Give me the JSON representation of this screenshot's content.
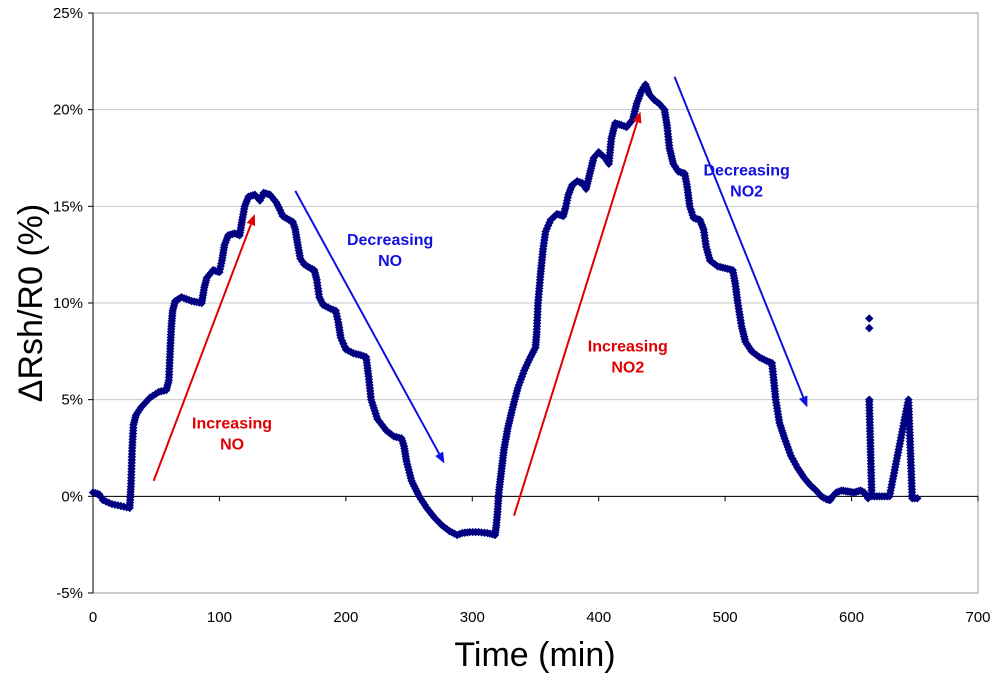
{
  "chart_data": {
    "type": "scatter",
    "title": "",
    "xlabel": "Time (min)",
    "ylabel": "ΔRsh/R0 (%)",
    "xlim": [
      0,
      700
    ],
    "ylim": [
      -5,
      25
    ],
    "xticks": [
      0,
      100,
      200,
      300,
      400,
      500,
      600,
      700
    ],
    "yticks": [
      -5,
      0,
      5,
      10,
      15,
      20,
      25
    ],
    "yticklabels": [
      "-5%",
      "0%",
      "5%",
      "10%",
      "15%",
      "20%",
      "25%"
    ],
    "grid": "horizontal",
    "marker_color": "#000080",
    "series": [
      {
        "name": "ΔRsh/R0",
        "marker": "diamond",
        "points": [
          [
            0,
            0.2
          ],
          [
            5,
            0.1
          ],
          [
            8,
            -0.2
          ],
          [
            15,
            -0.4
          ],
          [
            22,
            -0.5
          ],
          [
            29,
            -0.6
          ],
          [
            30,
            0.5
          ],
          [
            31,
            2.5
          ],
          [
            32,
            3.7
          ],
          [
            34,
            4.2
          ],
          [
            38,
            4.6
          ],
          [
            45,
            5.1
          ],
          [
            52,
            5.4
          ],
          [
            58,
            5.5
          ],
          [
            60,
            6.0
          ],
          [
            61,
            7.5
          ],
          [
            62,
            8.8
          ],
          [
            63,
            9.6
          ],
          [
            65,
            10.1
          ],
          [
            70,
            10.3
          ],
          [
            78,
            10.1
          ],
          [
            86,
            10.0
          ],
          [
            88,
            10.8
          ],
          [
            90,
            11.3
          ],
          [
            95,
            11.7
          ],
          [
            100,
            11.6
          ],
          [
            102,
            12.2
          ],
          [
            104,
            13.0
          ],
          [
            107,
            13.5
          ],
          [
            112,
            13.6
          ],
          [
            116,
            13.5
          ],
          [
            118,
            14.3
          ],
          [
            120,
            15.0
          ],
          [
            123,
            15.5
          ],
          [
            128,
            15.6
          ],
          [
            132,
            15.3
          ],
          [
            135,
            15.7
          ],
          [
            140,
            15.6
          ],
          [
            145,
            15.2
          ],
          [
            148,
            14.8
          ],
          [
            150,
            14.5
          ],
          [
            155,
            14.3
          ],
          [
            158,
            14.2
          ],
          [
            160,
            13.8
          ],
          [
            162,
            13.0
          ],
          [
            164,
            12.3
          ],
          [
            167,
            12.0
          ],
          [
            172,
            11.8
          ],
          [
            175,
            11.7
          ],
          [
            177,
            11.2
          ],
          [
            179,
            10.3
          ],
          [
            182,
            9.9
          ],
          [
            188,
            9.7
          ],
          [
            192,
            9.6
          ],
          [
            194,
            9.0
          ],
          [
            196,
            8.2
          ],
          [
            200,
            7.6
          ],
          [
            206,
            7.4
          ],
          [
            212,
            7.3
          ],
          [
            216,
            7.2
          ],
          [
            218,
            6.2
          ],
          [
            220,
            5.0
          ],
          [
            225,
            4.0
          ],
          [
            232,
            3.4
          ],
          [
            238,
            3.1
          ],
          [
            244,
            3.0
          ],
          [
            246,
            2.6
          ],
          [
            248,
            1.8
          ],
          [
            252,
            0.8
          ],
          [
            258,
            0.0
          ],
          [
            264,
            -0.6
          ],
          [
            270,
            -1.1
          ],
          [
            276,
            -1.5
          ],
          [
            282,
            -1.8
          ],
          [
            288,
            -2.0
          ],
          [
            292,
            -1.9
          ],
          [
            298,
            -1.85
          ],
          [
            305,
            -1.85
          ],
          [
            312,
            -1.9
          ],
          [
            318,
            -2.0
          ],
          [
            319,
            -1.5
          ],
          [
            320,
            -0.8
          ],
          [
            321,
            0.2
          ],
          [
            323,
            1.3
          ],
          [
            325,
            2.4
          ],
          [
            328,
            3.5
          ],
          [
            332,
            4.6
          ],
          [
            336,
            5.6
          ],
          [
            341,
            6.5
          ],
          [
            346,
            7.2
          ],
          [
            350,
            7.7
          ],
          [
            351,
            8.5
          ],
          [
            352,
            10.0
          ],
          [
            354,
            11.5
          ],
          [
            356,
            12.8
          ],
          [
            358,
            13.7
          ],
          [
            362,
            14.3
          ],
          [
            367,
            14.6
          ],
          [
            372,
            14.5
          ],
          [
            374,
            15.0
          ],
          [
            376,
            15.6
          ],
          [
            379,
            16.1
          ],
          [
            383,
            16.3
          ],
          [
            387,
            16.2
          ],
          [
            390,
            15.9
          ],
          [
            393,
            16.7
          ],
          [
            396,
            17.5
          ],
          [
            400,
            17.8
          ],
          [
            405,
            17.5
          ],
          [
            408,
            17.2
          ],
          [
            410,
            18.5
          ],
          [
            413,
            19.3
          ],
          [
            418,
            19.2
          ],
          [
            422,
            19.1
          ],
          [
            427,
            19.5
          ],
          [
            430,
            20.3
          ],
          [
            434,
            21.0
          ],
          [
            437,
            21.3
          ],
          [
            440,
            20.8
          ],
          [
            444,
            20.5
          ],
          [
            448,
            20.3
          ],
          [
            452,
            20.0
          ],
          [
            454,
            19.2
          ],
          [
            456,
            18.0
          ],
          [
            459,
            17.2
          ],
          [
            463,
            16.8
          ],
          [
            468,
            16.7
          ],
          [
            470,
            16.0
          ],
          [
            472,
            15.0
          ],
          [
            475,
            14.4
          ],
          [
            480,
            14.3
          ],
          [
            483,
            13.8
          ],
          [
            485,
            12.9
          ],
          [
            488,
            12.2
          ],
          [
            494,
            11.9
          ],
          [
            500,
            11.8
          ],
          [
            506,
            11.7
          ],
          [
            508,
            11.0
          ],
          [
            510,
            10.0
          ],
          [
            513,
            8.8
          ],
          [
            516,
            8.0
          ],
          [
            521,
            7.5
          ],
          [
            527,
            7.2
          ],
          [
            533,
            7.0
          ],
          [
            537,
            6.9
          ],
          [
            538,
            6.3
          ],
          [
            540,
            5.0
          ],
          [
            543,
            3.8
          ],
          [
            547,
            3.0
          ],
          [
            552,
            2.1
          ],
          [
            557,
            1.5
          ],
          [
            562,
            1.0
          ],
          [
            567,
            0.6
          ],
          [
            572,
            0.3
          ],
          [
            576,
            0.0
          ],
          [
            580,
            -0.15
          ],
          [
            583,
            -0.2
          ],
          [
            585,
            0.0
          ],
          [
            588,
            0.2
          ],
          [
            592,
            0.3
          ],
          [
            597,
            0.25
          ],
          [
            602,
            0.2
          ],
          [
            607,
            0.3
          ],
          [
            610,
            0.2
          ],
          [
            613,
            -0.1
          ],
          [
            614,
            0.0
          ],
          [
            614,
            9.2
          ],
          [
            614,
            8.7
          ],
          [
            614,
            5.0
          ],
          [
            614,
            4.9
          ],
          [
            616,
            0.0
          ],
          [
            620,
            0.0
          ],
          [
            628,
            0.0
          ],
          [
            630,
            0.0
          ],
          [
            645,
            5.0
          ],
          [
            648,
            -0.1
          ],
          [
            650,
            -0.1
          ],
          [
            652,
            -0.1
          ]
        ]
      }
    ],
    "annotations": [
      {
        "label_lines": [
          "Increasing",
          "NO"
        ],
        "color": "#e00000",
        "arrow_from": [
          48,
          0.8
        ],
        "arrow_to": [
          128,
          14.6
        ],
        "text_at": [
          110,
          3.5
        ]
      },
      {
        "label_lines": [
          "Decreasing",
          "NO"
        ],
        "color": "#1010e0",
        "arrow_from": [
          160,
          15.8
        ],
        "arrow_to": [
          278,
          1.7
        ],
        "text_at": [
          235,
          13.0
        ]
      },
      {
        "label_lines": [
          "Increasing",
          "NO2"
        ],
        "color": "#e00000",
        "arrow_from": [
          333,
          -1.0
        ],
        "arrow_to": [
          433,
          19.9
        ],
        "text_at": [
          423,
          7.5
        ]
      },
      {
        "label_lines": [
          "Decreasing",
          "NO2"
        ],
        "color": "#1010e0",
        "arrow_from": [
          460,
          21.7
        ],
        "arrow_to": [
          565,
          4.6
        ],
        "text_at": [
          517,
          16.6
        ]
      }
    ]
  }
}
